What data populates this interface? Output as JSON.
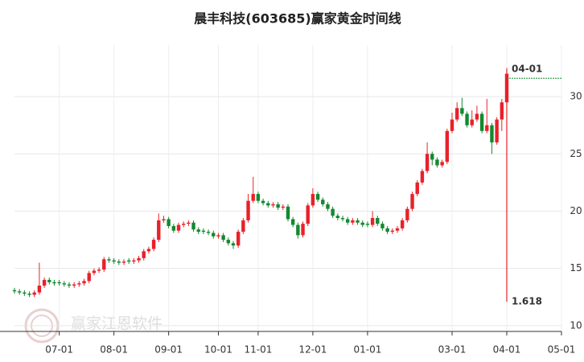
{
  "chart_data": {
    "type": "candlestick",
    "title": "晨丰科技(603685)赢家黄金时间线",
    "watermark": "赢家江恩软件",
    "categories": [
      null,
      null,
      null,
      null,
      null,
      null,
      null,
      null,
      null,
      "07-01",
      null,
      null,
      null,
      null,
      null,
      null,
      null,
      null,
      null,
      null,
      "08-01",
      null,
      null,
      null,
      null,
      null,
      null,
      null,
      null,
      null,
      null,
      "09-01",
      null,
      null,
      null,
      null,
      null,
      null,
      null,
      null,
      null,
      "10-01",
      null,
      null,
      null,
      null,
      null,
      null,
      null,
      "11-01",
      null,
      null,
      null,
      null,
      null,
      null,
      null,
      null,
      null,
      null,
      "12-01",
      null,
      null,
      null,
      null,
      null,
      null,
      null,
      null,
      null,
      null,
      "01-01",
      null,
      null,
      null,
      null,
      null,
      null,
      null,
      null,
      null,
      null,
      null,
      null,
      null,
      null,
      null,
      null,
      "03-01",
      null,
      null,
      null,
      null,
      null,
      null,
      null,
      null,
      null,
      null,
      "04-01",
      null,
      null,
      null,
      null,
      null,
      null,
      null,
      null,
      null,
      null,
      "05-01"
    ],
    "open": [
      13.1,
      13.0,
      12.9,
      12.8,
      12.7,
      12.9,
      13.5,
      14.0,
      13.8,
      13.8,
      13.7,
      13.6,
      13.5,
      13.6,
      13.7,
      13.9,
      14.6,
      14.8,
      14.9,
      15.8,
      15.7,
      15.6,
      15.5,
      15.7,
      15.6,
      15.7,
      15.9,
      16.5,
      16.7,
      17.5,
      19.2,
      19.3,
      18.7,
      18.3,
      18.8,
      18.9,
      19.0,
      18.4,
      18.3,
      18.2,
      18.1,
      17.8,
      17.9,
      17.5,
      17.2,
      17.0,
      18.2,
      19.2,
      20.9,
      21.5,
      20.9,
      20.7,
      20.5,
      20.6,
      20.3,
      20.4,
      19.3,
      18.8,
      17.9,
      18.9,
      20.5,
      21.5,
      21.0,
      20.6,
      20.2,
      19.6,
      19.4,
      19.3,
      19.0,
      19.2,
      19.0,
      18.9,
      18.8,
      19.4,
      18.9,
      18.5,
      18.2,
      18.3,
      18.5,
      19.2,
      20.2,
      21.5,
      22.5,
      23.5,
      25.0,
      24.5,
      24.0,
      24.3,
      27.0,
      28.0,
      29.0,
      28.5,
      27.5,
      28.0,
      28.5,
      27.0,
      27.5,
      26.0,
      28.0,
      29.5,
      null,
      null,
      null,
      null,
      null,
      null,
      null,
      null,
      null,
      null,
      null
    ],
    "high": [
      13.3,
      13.2,
      13.1,
      13.0,
      13.1,
      15.5,
      14.2,
      14.2,
      14.0,
      14.0,
      13.9,
      13.8,
      13.8,
      13.9,
      14.1,
      14.8,
      15.0,
      15.1,
      16.0,
      16.0,
      15.9,
      15.8,
      15.8,
      15.9,
      15.9,
      16.1,
      16.7,
      16.9,
      17.7,
      19.8,
      19.6,
      19.5,
      18.9,
      19.0,
      19.1,
      19.2,
      19.2,
      18.6,
      18.5,
      18.4,
      18.3,
      18.1,
      18.1,
      17.7,
      17.4,
      18.4,
      19.4,
      21.5,
      23.0,
      21.7,
      21.1,
      20.9,
      20.8,
      20.8,
      20.6,
      20.6,
      19.5,
      19.0,
      19.1,
      20.7,
      22.0,
      21.7,
      21.2,
      20.8,
      20.4,
      19.8,
      19.6,
      19.5,
      19.4,
      19.4,
      19.2,
      19.1,
      20.0,
      19.6,
      19.1,
      18.7,
      18.5,
      18.7,
      19.4,
      20.4,
      21.7,
      22.7,
      23.7,
      26.0,
      25.2,
      24.7,
      24.5,
      27.2,
      28.6,
      29.5,
      29.9,
      28.7,
      28.8,
      29.2,
      28.7,
      29.8,
      27.7,
      28.2,
      29.8,
      32.5,
      null,
      null,
      null,
      null,
      null,
      null,
      null,
      null,
      null,
      null,
      null
    ],
    "low": [
      12.8,
      12.7,
      12.6,
      12.5,
      12.5,
      12.7,
      13.3,
      13.6,
      13.5,
      13.5,
      13.4,
      13.3,
      13.3,
      13.4,
      13.5,
      13.7,
      14.4,
      14.6,
      14.7,
      15.5,
      15.4,
      15.3,
      15.3,
      15.4,
      15.4,
      15.5,
      15.7,
      16.3,
      16.5,
      17.3,
      19.0,
      18.5,
      18.1,
      18.1,
      18.6,
      18.7,
      18.2,
      18.0,
      18.0,
      17.9,
      17.6,
      17.6,
      17.3,
      17.0,
      16.7,
      16.8,
      18.0,
      19.0,
      20.7,
      20.7,
      20.5,
      20.3,
      20.3,
      20.1,
      20.1,
      19.1,
      18.6,
      17.6,
      17.7,
      18.7,
      20.3,
      20.8,
      20.4,
      20.0,
      19.4,
      19.2,
      19.1,
      18.8,
      18.8,
      18.8,
      18.6,
      18.6,
      18.6,
      18.7,
      18.3,
      18.0,
      18.0,
      18.1,
      18.3,
      19.0,
      20.0,
      21.3,
      22.3,
      23.3,
      24.0,
      23.8,
      23.8,
      24.1,
      26.8,
      27.8,
      28.3,
      27.3,
      27.3,
      27.8,
      26.8,
      26.8,
      25.0,
      25.8,
      27.0,
      29.3,
      null,
      null,
      null,
      null,
      null,
      null,
      null,
      null,
      null,
      null,
      null
    ],
    "close": [
      13.0,
      12.9,
      12.8,
      12.7,
      12.9,
      13.5,
      14.0,
      13.8,
      13.7,
      13.7,
      13.6,
      13.5,
      13.6,
      13.7,
      13.9,
      14.6,
      14.8,
      14.9,
      15.8,
      15.7,
      15.6,
      15.5,
      15.6,
      15.6,
      15.7,
      15.9,
      16.5,
      16.7,
      17.5,
      19.2,
      19.3,
      18.7,
      18.3,
      18.8,
      18.9,
      19.0,
      18.4,
      18.2,
      18.2,
      18.1,
      17.8,
      17.9,
      17.5,
      17.2,
      17.0,
      18.2,
      19.2,
      20.9,
      21.5,
      20.9,
      20.7,
      20.5,
      20.6,
      20.3,
      20.4,
      19.3,
      18.8,
      17.9,
      18.9,
      20.5,
      21.5,
      21.0,
      20.6,
      20.2,
      19.6,
      19.4,
      19.3,
      19.0,
      19.2,
      19.0,
      18.8,
      18.8,
      19.4,
      18.9,
      18.5,
      18.2,
      18.3,
      18.5,
      19.2,
      20.2,
      21.5,
      22.5,
      23.5,
      25.0,
      24.5,
      24.0,
      24.3,
      27.0,
      28.0,
      29.0,
      28.5,
      27.5,
      28.0,
      28.5,
      27.0,
      27.5,
      26.0,
      28.0,
      29.5,
      32.0,
      null,
      null,
      null,
      null,
      null,
      null,
      null,
      null,
      null,
      null,
      null
    ],
    "up_color": "#e8212a",
    "down_color": "#12892f",
    "ylim": [
      9.5,
      34.5
    ],
    "yticks": [
      10,
      15,
      20,
      25,
      30
    ],
    "grid": true,
    "annotation": {
      "index": 99,
      "date_label": "04-01",
      "ratio_label": "1.618",
      "line_top": 32.4,
      "line_bottom": 12.1,
      "level": 31.6,
      "color": "#e8212a",
      "level_color": "#12892f"
    }
  }
}
